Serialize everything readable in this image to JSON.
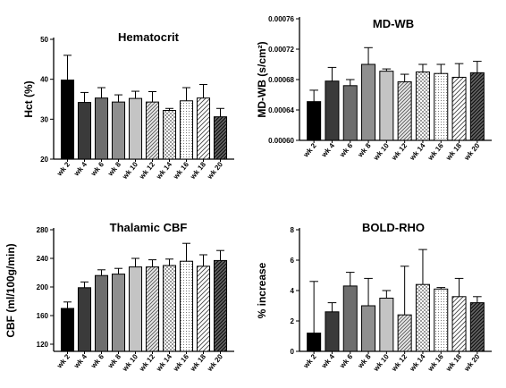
{
  "chart_data": [
    {
      "type": "bar",
      "title": "Hematocrit",
      "ylabel": "Hct (%)",
      "ylim": [
        20,
        50
      ],
      "yticks": [
        "20",
        "30",
        "40",
        "50"
      ],
      "categories": [
        "wk 2",
        "wk 4",
        "wk 6",
        "wk 8",
        "wk 10",
        "wk 12",
        "wk 14",
        "wk 16",
        "wk 18",
        "wk 20"
      ],
      "values": [
        39.8,
        34.2,
        35.3,
        34.3,
        35.2,
        34.3,
        32.2,
        34.6,
        35.3,
        30.6
      ],
      "errors": [
        6.2,
        2.5,
        2.6,
        1.8,
        1.8,
        2.6,
        0.5,
        3.3,
        3.4,
        2.1
      ]
    },
    {
      "type": "bar",
      "title": "MD-WB",
      "ylabel": "MD-WB (s/cm²)",
      "ylim": [
        0.0006,
        0.00076
      ],
      "yticks": [
        "0.00060",
        "0.00064",
        "0.00068",
        "0.00072",
        "0.00076"
      ],
      "categories": [
        "wk 2",
        "wk 4",
        "wk 6",
        "wk 8",
        "wk 10",
        "wk 12",
        "wk 14",
        "wk 16",
        "wk 18",
        "wk 20"
      ],
      "values": [
        0.000651,
        0.000678,
        0.000672,
        0.0007,
        0.000691,
        0.000677,
        0.00069,
        0.000688,
        0.000683,
        0.000689
      ],
      "errors": [
        1.5e-05,
        1.8e-05,
        8e-06,
        2.2e-05,
        3e-06,
        1e-05,
        1e-05,
        1.2e-05,
        1.8e-05,
        1.5e-05
      ]
    },
    {
      "type": "bar",
      "title": "Thalamic CBF",
      "ylabel": "CBF (ml/100g/min)",
      "ylim": [
        110,
        280
      ],
      "yticks": [
        "120",
        "160",
        "200",
        "240",
        "280"
      ],
      "categories": [
        "wk 2",
        "wk 4",
        "wk 6",
        "wk 8",
        "wk 10",
        "wk 12",
        "wk 14",
        "wk 16",
        "wk 18",
        "wk 20"
      ],
      "values": [
        170,
        199,
        216,
        218,
        228,
        228,
        230,
        236,
        229,
        237
      ],
      "errors": [
        9,
        8,
        8,
        8,
        12,
        10,
        9,
        25,
        16,
        14
      ]
    },
    {
      "type": "bar",
      "title": "BOLD-RHO",
      "ylabel": "% increase",
      "ylim": [
        0,
        8
      ],
      "yticks": [
        "0",
        "2",
        "4",
        "6",
        "8"
      ],
      "categories": [
        "wk 2",
        "wk 4",
        "wk 6",
        "wk 8",
        "wk 10",
        "wk 12",
        "wk 14",
        "wk 16",
        "wk 18",
        "wk 20"
      ],
      "values": [
        1.2,
        2.6,
        4.3,
        3.0,
        3.5,
        2.4,
        4.4,
        4.1,
        3.6,
        3.2
      ],
      "errors": [
        3.4,
        0.6,
        0.9,
        1.8,
        0.5,
        3.2,
        2.3,
        0.1,
        1.2,
        0.4
      ]
    }
  ]
}
